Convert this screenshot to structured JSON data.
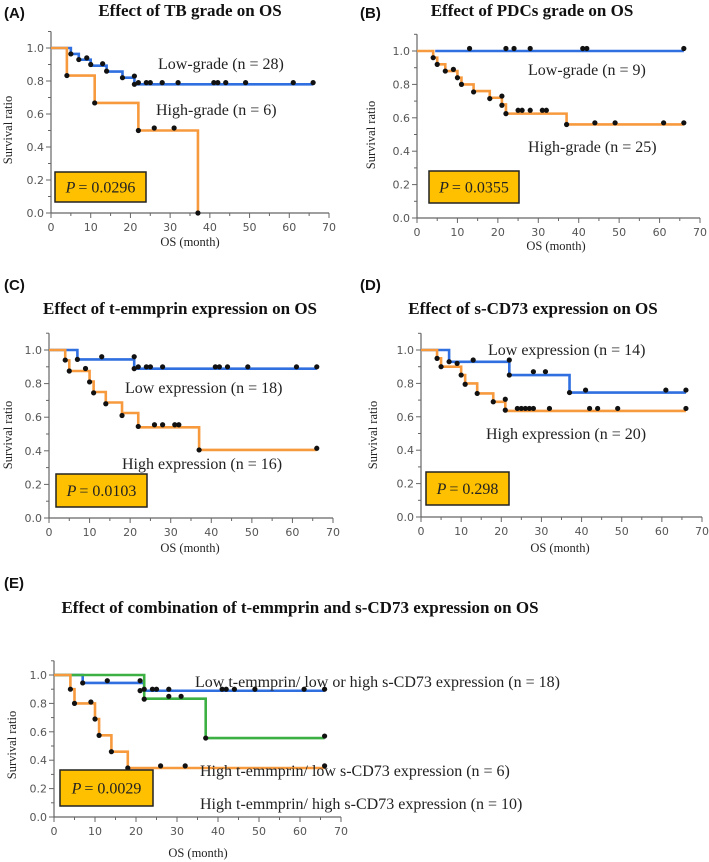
{
  "chart_data": [
    {
      "type": "line",
      "panel": "(A)",
      "title": "Effect of TB grade on OS",
      "xlabel": "OS (month)",
      "ylabel": "Survival ratio",
      "xlim": [
        0,
        70
      ],
      "ylim": [
        0,
        1.1
      ],
      "xticks": [
        "0",
        "10",
        "20",
        "30",
        "40",
        "50",
        "60",
        "70"
      ],
      "yticks": [
        "0.0",
        "0.2",
        "0.4",
        "0.6",
        "0.8",
        "1.0"
      ],
      "p_symbol": "P",
      "p_value": "= 0.0296",
      "p_box_color": "#ffc000",
      "series": [
        {
          "name": "Low-grade (n = 28)",
          "color": "#2f6fe0",
          "steps": [
            [
              0,
              1
            ],
            [
              5,
              0.964
            ],
            [
              7,
              0.929
            ],
            [
              10,
              0.893
            ],
            [
              14,
              0.857
            ],
            [
              18,
              0.82
            ],
            [
              21,
              0.78
            ],
            [
              66,
              0.78
            ]
          ],
          "marks": [
            [
              5,
              0.964
            ],
            [
              7,
              0.93
            ],
            [
              9,
              0.94
            ],
            [
              10,
              0.9
            ],
            [
              13,
              0.905
            ],
            [
              14,
              0.86
            ],
            [
              18,
              0.82
            ],
            [
              21,
              0.83
            ],
            [
              21,
              0.78
            ],
            [
              22,
              0.79
            ],
            [
              24,
              0.79
            ],
            [
              25,
              0.79
            ],
            [
              28,
              0.79
            ],
            [
              32,
              0.79
            ],
            [
              41,
              0.79
            ],
            [
              42,
              0.79
            ],
            [
              44,
              0.79
            ],
            [
              49,
              0.79
            ],
            [
              61,
              0.79
            ],
            [
              66,
              0.79
            ]
          ]
        },
        {
          "name": "High-grade (n = 6)",
          "color": "#f79a3e",
          "steps": [
            [
              0,
              1
            ],
            [
              4,
              0.833
            ],
            [
              11,
              0.667
            ],
            [
              22,
              0.5
            ],
            [
              37,
              0
            ]
          ],
          "marks": [
            [
              4,
              0.833
            ],
            [
              11,
              0.667
            ],
            [
              22,
              0.5
            ],
            [
              26,
              0.515
            ],
            [
              31,
              0.515
            ],
            [
              37,
              0
            ]
          ]
        }
      ]
    },
    {
      "type": "line",
      "panel": "(B)",
      "title": "Effect of PDCs grade on OS",
      "xlabel": "OS (month)",
      "ylabel": "Survival ratio",
      "xlim": [
        0,
        70
      ],
      "ylim": [
        0,
        1.1
      ],
      "xticks": [
        "0",
        "10",
        "20",
        "30",
        "40",
        "50",
        "60",
        "70"
      ],
      "yticks": [
        "0.0",
        "0.2",
        "0.4",
        "0.6",
        "0.8",
        "1.0"
      ],
      "p_symbol": "P",
      "p_value": "= 0.0355",
      "p_box_color": "#ffc000",
      "series": [
        {
          "name": "Low-grade (n = 9)",
          "color": "#2f6fe0",
          "steps": [
            [
              4.5,
              1
            ],
            [
              66,
              1
            ]
          ],
          "marks": [
            [
              13,
              1.015
            ],
            [
              22,
              1.015
            ],
            [
              24,
              1.015
            ],
            [
              28,
              1.015
            ],
            [
              41,
              1.015
            ],
            [
              42,
              1.015
            ],
            [
              66,
              1.015
            ]
          ]
        },
        {
          "name": "High-grade (n = 25)",
          "color": "#f79a3e",
          "steps": [
            [
              0,
              1
            ],
            [
              4,
              0.96
            ],
            [
              5,
              0.92
            ],
            [
              7,
              0.88
            ],
            [
              10,
              0.84
            ],
            [
              11,
              0.8
            ],
            [
              14,
              0.76
            ],
            [
              18,
              0.72
            ],
            [
              21,
              0.68
            ],
            [
              22,
              0.625
            ],
            [
              37,
              0.56
            ],
            [
              66,
              0.56
            ]
          ],
          "marks": [
            [
              4,
              0.96
            ],
            [
              5,
              0.92
            ],
            [
              7,
              0.88
            ],
            [
              9,
              0.89
            ],
            [
              10,
              0.84
            ],
            [
              11,
              0.8
            ],
            [
              14,
              0.755
            ],
            [
              18,
              0.715
            ],
            [
              21,
              0.73
            ],
            [
              21,
              0.675
            ],
            [
              22,
              0.625
            ],
            [
              25,
              0.645
            ],
            [
              26,
              0.645
            ],
            [
              28,
              0.645
            ],
            [
              31,
              0.645
            ],
            [
              32,
              0.645
            ],
            [
              37,
              0.56
            ],
            [
              44,
              0.57
            ],
            [
              49,
              0.57
            ],
            [
              61,
              0.57
            ],
            [
              66,
              0.57
            ]
          ]
        }
      ]
    },
    {
      "type": "line",
      "panel": "(C)",
      "title": "Effect of t-emmprin expression on OS",
      "xlabel": "OS (month)",
      "ylabel": "Survival ratio",
      "xlim": [
        0,
        70
      ],
      "ylim": [
        0,
        1.1
      ],
      "xticks": [
        "0",
        "10",
        "20",
        "30",
        "40",
        "50",
        "60",
        "70"
      ],
      "yticks": [
        "0.0",
        "0.2",
        "0.4",
        "0.6",
        "0.8",
        "1.0"
      ],
      "p_symbol": "P",
      "p_value": "= 0.0103",
      "p_box_color": "#ffc000",
      "series": [
        {
          "name": "Low expression (n = 18)",
          "color": "#2f6fe0",
          "steps": [
            [
              0,
              1
            ],
            [
              7,
              0.944
            ],
            [
              21,
              0.889
            ],
            [
              66,
              0.889
            ]
          ],
          "marks": [
            [
              7,
              0.944
            ],
            [
              13,
              0.96
            ],
            [
              21,
              0.96
            ],
            [
              21,
              0.889
            ],
            [
              22,
              0.9
            ],
            [
              24,
              0.9
            ],
            [
              25,
              0.9
            ],
            [
              28,
              0.9
            ],
            [
              41,
              0.9
            ],
            [
              42,
              0.9
            ],
            [
              44,
              0.9
            ],
            [
              49,
              0.9
            ],
            [
              61,
              0.9
            ],
            [
              66,
              0.9
            ]
          ]
        },
        {
          "name": "High expression (n = 16)",
          "color": "#f79a3e",
          "steps": [
            [
              0,
              1
            ],
            [
              4,
              0.938
            ],
            [
              5,
              0.875
            ],
            [
              10,
              0.8125
            ],
            [
              11,
              0.75
            ],
            [
              14,
              0.6875
            ],
            [
              18,
              0.625
            ],
            [
              22,
              0.54
            ],
            [
              37,
              0.405
            ],
            [
              66,
              0.405
            ]
          ],
          "marks": [
            [
              4,
              0.94
            ],
            [
              5,
              0.875
            ],
            [
              9,
              0.89
            ],
            [
              10,
              0.81
            ],
            [
              11,
              0.745
            ],
            [
              14,
              0.68
            ],
            [
              18,
              0.61
            ],
            [
              22,
              0.545
            ],
            [
              26,
              0.555
            ],
            [
              28,
              0.555
            ],
            [
              31,
              0.555
            ],
            [
              32,
              0.555
            ],
            [
              37,
              0.405
            ],
            [
              66,
              0.415
            ]
          ]
        }
      ]
    },
    {
      "type": "line",
      "panel": "(D)",
      "title": "Effect of s-CD73 expression on OS",
      "xlabel": "OS (month)",
      "ylabel": "Survival ratio",
      "xlim": [
        0,
        70
      ],
      "ylim": [
        0,
        1.1
      ],
      "xticks": [
        "0",
        "10",
        "20",
        "30",
        "40",
        "50",
        "60",
        "70"
      ],
      "yticks": [
        "0.0",
        "0.2",
        "0.4",
        "0.6",
        "0.8",
        "1.0"
      ],
      "p_symbol": "P",
      "p_value": "= 0.298",
      "p_box_color": "#ffc000",
      "series": [
        {
          "name": "Low expression (n = 14)",
          "color": "#2f6fe0",
          "steps": [
            [
              0,
              1
            ],
            [
              7,
              0.929
            ],
            [
              22,
              0.85
            ],
            [
              37,
              0.745
            ],
            [
              66,
              0.745
            ]
          ],
          "marks": [
            [
              7,
              0.93
            ],
            [
              13,
              0.94
            ],
            [
              22,
              0.94
            ],
            [
              22,
              0.85
            ],
            [
              28,
              0.87
            ],
            [
              31,
              0.87
            ],
            [
              37,
              0.745
            ],
            [
              41,
              0.76
            ],
            [
              61,
              0.76
            ],
            [
              66,
              0.76
            ]
          ]
        },
        {
          "name": "High expression (n = 20)",
          "color": "#f79a3e",
          "steps": [
            [
              0,
              1
            ],
            [
              4,
              0.95
            ],
            [
              5,
              0.9
            ],
            [
              10,
              0.85
            ],
            [
              11,
              0.8
            ],
            [
              14,
              0.74
            ],
            [
              18,
              0.69
            ],
            [
              21,
              0.635
            ],
            [
              66,
              0.635
            ]
          ],
          "marks": [
            [
              4,
              0.95
            ],
            [
              5,
              0.9
            ],
            [
              9,
              0.92
            ],
            [
              10,
              0.85
            ],
            [
              11,
              0.795
            ],
            [
              14,
              0.74
            ],
            [
              18,
              0.69
            ],
            [
              21,
              0.705
            ],
            [
              21,
              0.64
            ],
            [
              24,
              0.65
            ],
            [
              25,
              0.65
            ],
            [
              26,
              0.65
            ],
            [
              27,
              0.65
            ],
            [
              28,
              0.65
            ],
            [
              32,
              0.65
            ],
            [
              42,
              0.65
            ],
            [
              44,
              0.65
            ],
            [
              49,
              0.65
            ],
            [
              66,
              0.65
            ]
          ]
        }
      ]
    },
    {
      "type": "line",
      "panel": "(E)",
      "title": "Effect of combination of t-emmprin and s-CD73 expression on OS",
      "xlabel": "OS (month)",
      "ylabel": "Survival ratio",
      "xlim": [
        0,
        70
      ],
      "ylim": [
        0,
        1.1
      ],
      "xticks": [
        "0",
        "10",
        "20",
        "30",
        "40",
        "50",
        "60",
        "70"
      ],
      "yticks": [
        "0.0",
        "0.2",
        "0.4",
        "0.6",
        "0.8",
        "1.0"
      ],
      "p_symbol": "P",
      "p_value": "= 0.0029",
      "p_box_color": "#ffc000",
      "series": [
        {
          "name": "Low t-emmprin/ low or high s-CD73 expression (n = 18)",
          "color": "#2f6fe0",
          "steps": [
            [
              0,
              1
            ],
            [
              7,
              0.944
            ],
            [
              22,
              0.889
            ],
            [
              66,
              0.889
            ]
          ],
          "marks": [
            [
              7,
              0.944
            ],
            [
              13,
              0.96
            ],
            [
              21,
              0.96
            ],
            [
              21,
              0.89
            ],
            [
              22,
              0.9
            ],
            [
              24,
              0.9
            ],
            [
              25,
              0.9
            ],
            [
              28,
              0.9
            ],
            [
              41,
              0.9
            ],
            [
              42,
              0.9
            ],
            [
              44,
              0.9
            ],
            [
              49,
              0.9
            ],
            [
              61,
              0.9
            ],
            [
              66,
              0.9
            ]
          ]
        },
        {
          "name": "High t-emmprin/ low s-CD73 expression (n = 6)",
          "color": "#3cb043",
          "steps": [
            [
              0,
              1
            ],
            [
              22,
              0.833
            ],
            [
              37,
              0.556
            ],
            [
              66,
              0.556
            ]
          ],
          "marks": [
            [
              22,
              0.83
            ],
            [
              28,
              0.85
            ],
            [
              31,
              0.85
            ],
            [
              37,
              0.556
            ],
            [
              66,
              0.57
            ]
          ]
        },
        {
          "name": "High t-emmprin/ high s-CD73 expression (n = 10)",
          "color": "#f79a3e",
          "steps": [
            [
              0,
              1
            ],
            [
              4,
              0.9
            ],
            [
              5,
              0.8
            ],
            [
              10,
              0.69
            ],
            [
              11,
              0.575
            ],
            [
              14,
              0.46
            ],
            [
              18,
              0.345
            ],
            [
              66,
              0.345
            ]
          ],
          "marks": [
            [
              4,
              0.9
            ],
            [
              5,
              0.8
            ],
            [
              9,
              0.81
            ],
            [
              10,
              0.69
            ],
            [
              11,
              0.575
            ],
            [
              14,
              0.46
            ],
            [
              18,
              0.345
            ],
            [
              26,
              0.36
            ],
            [
              32,
              0.36
            ],
            [
              66,
              0.36
            ]
          ]
        }
      ]
    }
  ]
}
